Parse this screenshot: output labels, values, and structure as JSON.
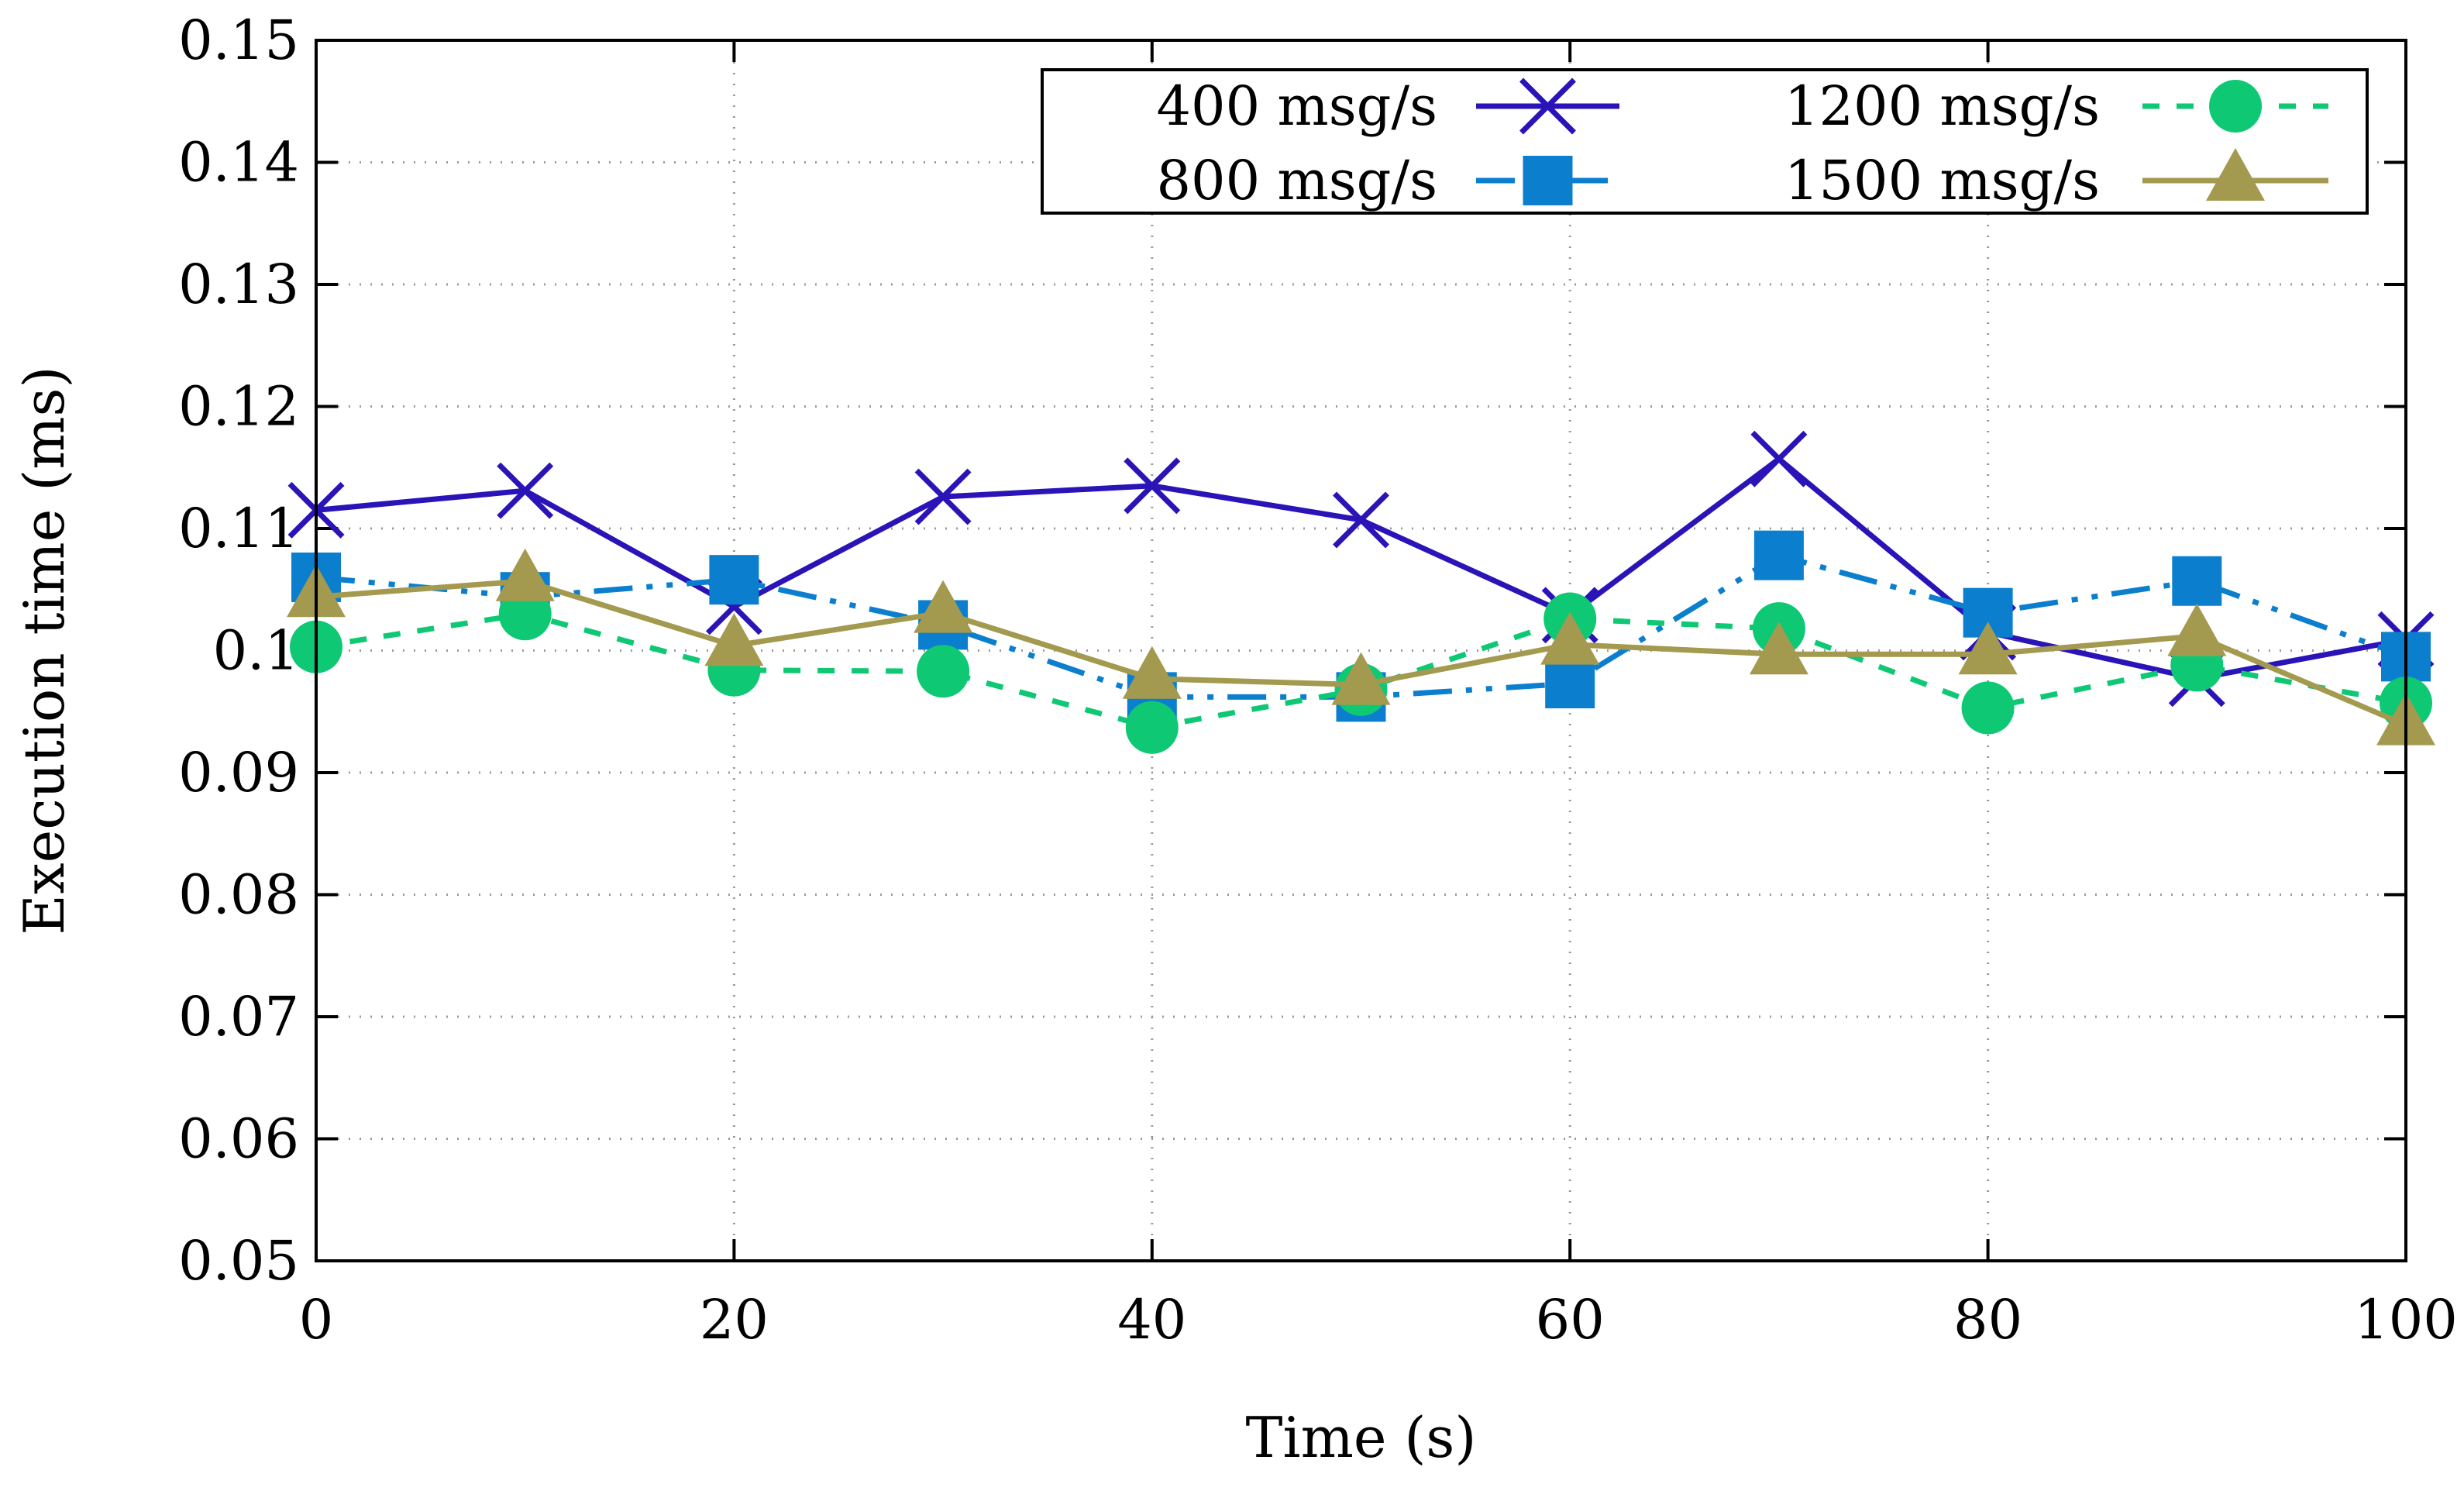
{
  "chart_data": {
    "type": "line",
    "title": "",
    "xlabel": "Time (s)",
    "ylabel": "Execution time (ms)",
    "xlim": [
      0,
      100
    ],
    "ylim": [
      0.05,
      0.15
    ],
    "xticks": [
      0,
      20,
      40,
      60,
      80,
      100
    ],
    "xtick_labels": [
      "0",
      "20",
      "40",
      "60",
      "80",
      "100"
    ],
    "yticks": [
      0.05,
      0.06,
      0.07,
      0.08,
      0.09,
      0.1,
      0.11,
      0.12,
      0.13,
      0.14,
      0.15
    ],
    "ytick_labels": [
      "0.05",
      "0.06",
      "0.07",
      "0.08",
      "0.09",
      "0.1",
      "0.11",
      "0.12",
      "0.13",
      "0.14",
      "0.15"
    ],
    "grid": true,
    "legend_position": "top-right",
    "x": [
      0,
      10,
      20,
      30,
      40,
      50,
      60,
      70,
      80,
      90,
      100
    ],
    "series": [
      {
        "name": "400 msg/s",
        "color": "#2a14b8",
        "marker": "x",
        "line": "solid",
        "values": [
          0.1115,
          0.1131,
          0.1036,
          0.1126,
          0.1135,
          0.1107,
          0.1029,
          0.1157,
          0.1015,
          0.0977,
          0.1009
        ]
      },
      {
        "name": "800 msg/s",
        "color": "#0b7fce",
        "marker": "square",
        "line": "dashdotdot",
        "values": [
          0.106,
          0.1044,
          0.1058,
          0.1021,
          0.0962,
          0.0962,
          0.0973,
          0.1078,
          0.1031,
          0.1057,
          0.0995
        ]
      },
      {
        "name": "1200 msg/s",
        "color": "#0ec874",
        "marker": "circle",
        "line": "dashed",
        "values": [
          0.1003,
          0.103,
          0.0984,
          0.0983,
          0.0937,
          0.0968,
          0.1026,
          0.1018,
          0.0953,
          0.0988,
          0.0957
        ]
      },
      {
        "name": "1500 msg/s",
        "color": "#a39a4f",
        "marker": "triangle",
        "line": "solid",
        "values": [
          0.1044,
          0.1057,
          0.1004,
          0.1031,
          0.0977,
          0.0972,
          0.1005,
          0.0997,
          0.0997,
          0.1012,
          0.0939
        ]
      }
    ]
  }
}
